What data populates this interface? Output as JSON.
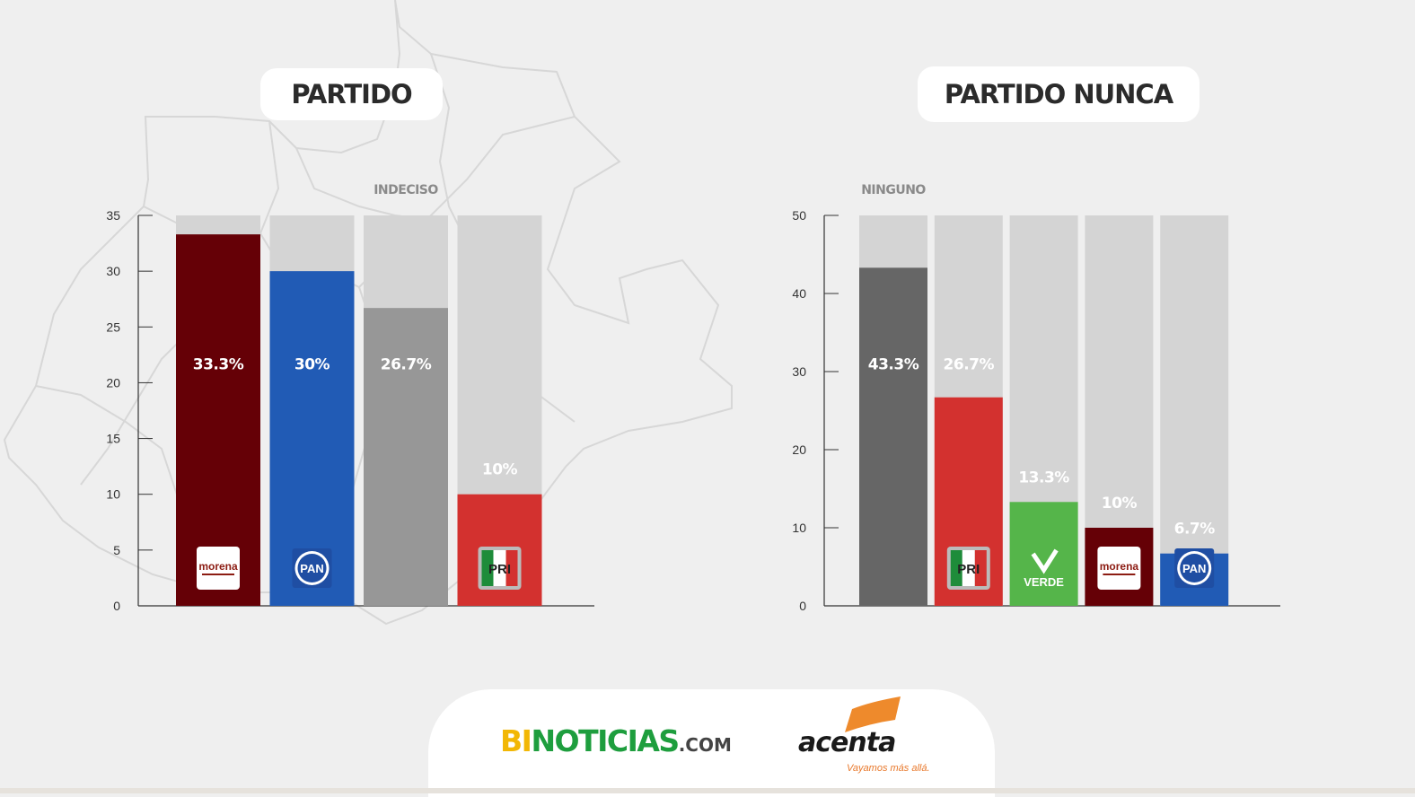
{
  "colors": {
    "track": "#d4d4d4",
    "label_on_bar": "#ffffff",
    "label_on_track": "#ffffff",
    "axis": "#333333",
    "category_label": "#8a8a8a"
  },
  "footer": {
    "brand1_a": "BI",
    "brand1_b": "NOTICIAS",
    "brand1_c": ".COM",
    "brand2": "acenta",
    "brand2_tagline": "Vayamos más allá."
  },
  "chart_data": [
    {
      "type": "bar",
      "title": "PARTIDO",
      "categories": [
        "MORENA",
        "PAN",
        "INDECISO",
        "PRI"
      ],
      "values": [
        33.3,
        30,
        26.7,
        10
      ],
      "value_labels": [
        "33.3%",
        "30%",
        "26.7%",
        "10%"
      ],
      "top_label": "INDECISO",
      "bar_colors": [
        "#650006",
        "#215bb5",
        "#979797",
        "#d3312f"
      ],
      "logos": [
        "morena",
        "pan",
        "",
        "pri"
      ],
      "ylim": [
        0,
        35
      ],
      "yticks": [
        0,
        5,
        10,
        15,
        20,
        25,
        30,
        35
      ],
      "grid": false
    },
    {
      "type": "bar",
      "title": "PARTIDO NUNCA",
      "categories": [
        "NINGUNO",
        "PRI",
        "VERDE",
        "MORENA",
        "PAN"
      ],
      "values": [
        43.3,
        26.7,
        13.3,
        10,
        6.7
      ],
      "value_labels": [
        "43.3%",
        "26.7%",
        "13.3%",
        "10%",
        "6.7%"
      ],
      "top_label": "NINGUNO",
      "bar_colors": [
        "#666666",
        "#d3312f",
        "#55b54a",
        "#650006",
        "#215bb5"
      ],
      "logos": [
        "",
        "pri",
        "verde",
        "morena",
        "pan"
      ],
      "ylim": [
        0,
        50
      ],
      "yticks": [
        0,
        10,
        20,
        30,
        40,
        50
      ],
      "grid": false
    }
  ]
}
